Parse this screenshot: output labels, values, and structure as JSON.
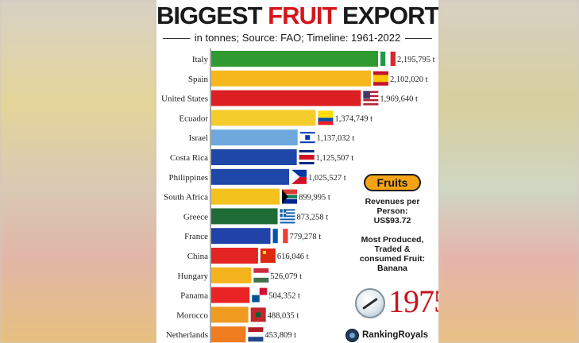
{
  "header": {
    "title_part1": "BIGGEST ",
    "title_part2": "FRUIT",
    "title_part3": " EXPORTERS",
    "subtitle": "in tonnes; Source: FAO; Timeline: 1961-2022"
  },
  "chart_data": {
    "type": "bar",
    "orientation": "horizontal",
    "title": "BIGGEST FRUIT EXPORTERS",
    "subtitle": "in tonnes; Source: FAO; Timeline: 1961-2022",
    "xlim": [
      0,
      2195795
    ],
    "categories": [
      "Italy",
      "Spain",
      "United States",
      "Ecuador",
      "Israel",
      "Costa Rica",
      "Philippines",
      "South Africa",
      "Greece",
      "France",
      "China",
      "Hungary",
      "Panama",
      "Morocco",
      "Netherlands"
    ],
    "values": [
      2195795,
      2102020,
      1969640,
      1374749,
      1137032,
      1125507,
      1025527,
      899995,
      873258,
      779278,
      616046,
      526079,
      504352,
      488035,
      453809
    ],
    "value_labels": [
      "2,195,795 t",
      "2,102,020 t",
      "1,969,640 t",
      "1,374,749 t",
      "1,137,032 t",
      "1,125,507 t",
      "1,025,527 t",
      "899,995 t",
      "873,258 t",
      "779,278 t",
      "616,046 t",
      "526,079 t",
      "504,352 t",
      "488,035 t",
      "453,809 t"
    ],
    "colors": [
      "#2f9a2f",
      "#f6b81e",
      "#dc1f22",
      "#f4cc2c",
      "#6ea8dc",
      "#1e47a8",
      "#1e47a8",
      "#f4c21d",
      "#1f6b35",
      "#2142a8",
      "#e32422",
      "#f4b31c",
      "#ea2424",
      "#ef9b20",
      "#ef7c1e"
    ],
    "flags": [
      "italy-flag",
      "spain-flag",
      "usa-flag",
      "ecuador-flag",
      "israel-flag",
      "costa-rica-flag",
      "philippines-flag",
      "south-africa-flag",
      "greece-flag",
      "france-flag",
      "china-flag",
      "hungary-flag",
      "panama-flag",
      "morocco-flag",
      "netherlands-flag"
    ],
    "grid": false,
    "legend": "none"
  },
  "side": {
    "badge": "Fruits",
    "revenue_label": "Revenues per Person:",
    "revenue_value": "US$93.72",
    "produced_label": "Most Produced, Traded & consumed Fruit:",
    "produced_value": "Banana",
    "year": "1975",
    "brand": "RankingRoyals"
  }
}
